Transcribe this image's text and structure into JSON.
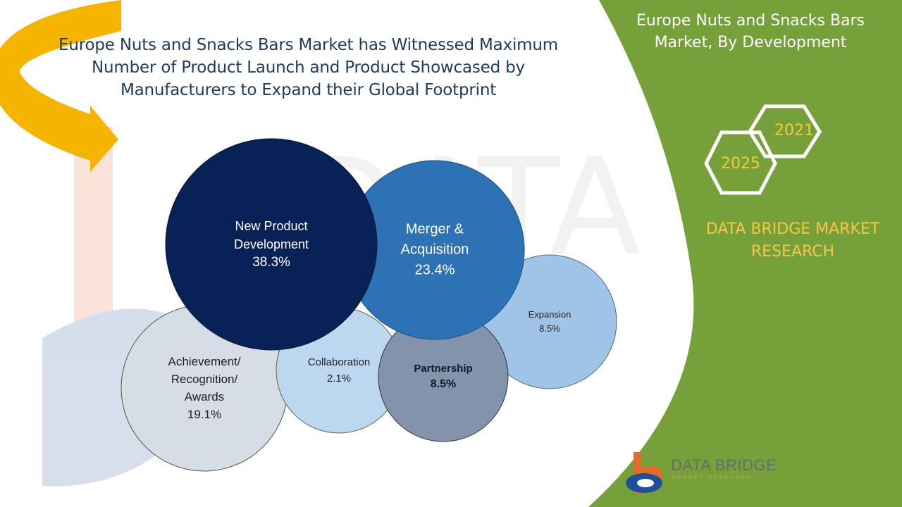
{
  "headline": "Europe Nuts and Snacks Bars Market has Witnessed Maximum Number of Product Launch and Product Showcased by Manufacturers to Expand their Global Footprint",
  "side_panel": {
    "title": "Europe Nuts and Snacks Bars Market, By Development",
    "year_start": "2021",
    "year_end": "2025",
    "brand_label": "DATA BRIDGE MARKET RESEARCH"
  },
  "logo": {
    "name": "DATA BRIDGE",
    "tagline": "MARKET RESEARCH"
  },
  "watermark_text": "DATA BRIDGE",
  "colors": {
    "green_panel": "#76a03a",
    "gold_text": "#f6c744",
    "arrow": "#f5b400",
    "headline": "#1f3a5c"
  },
  "chart_data": {
    "type": "bubble",
    "title": "",
    "unit": "%",
    "categories": [
      "Achievement/ Recognition/ Awards",
      "Collaboration",
      "Expansion",
      "Partnership",
      "Merger & Acquisition",
      "New Product Development"
    ],
    "values": [
      19.1,
      2.1,
      8.5,
      8.5,
      23.4,
      38.3
    ],
    "value_labels": [
      "19.1%",
      "2.1%",
      "8.5%",
      "8.5%",
      "23.4%",
      "38.3%"
    ],
    "colors": [
      "#d6dde6",
      "#bcd7ef",
      "#9fc4e8",
      "#8393ab",
      "#2e72b6",
      "#082258"
    ]
  }
}
